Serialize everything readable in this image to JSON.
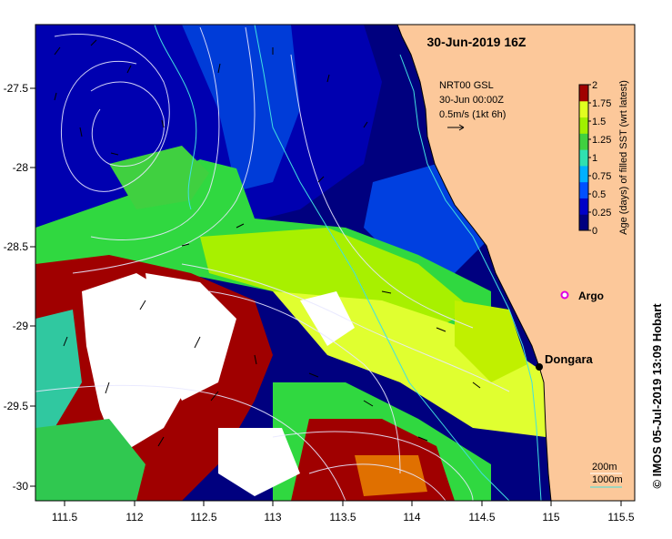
{
  "title": "30-Jun-2019 16Z",
  "product": {
    "line1": "NRT00 GSL",
    "line2": "30-Jun 00:00Z",
    "line3": "0.5m/s (1kt 6h)"
  },
  "colorbar": {
    "label": "Age (days) of filled SST (wrt latest)",
    "ticks": [
      "0",
      "0.25",
      "0.5",
      "0.75",
      "1",
      "1.25",
      "1.5",
      "1.75",
      "2"
    ],
    "colors": [
      "#00007f",
      "#0000c8",
      "#0050ff",
      "#00b0ff",
      "#30e0b0",
      "#40d040",
      "#a0f000",
      "#e0ff20",
      "#a00000"
    ]
  },
  "axes": {
    "x_ticks": [
      "111.5",
      "112",
      "112.5",
      "113",
      "113.5",
      "114",
      "114.5",
      "115",
      "115.5"
    ],
    "y_ticks": [
      "-27.5",
      "-28",
      "-28.5",
      "-29",
      "-29.5",
      "-30"
    ]
  },
  "places": [
    {
      "name": "Argo",
      "lon": 115.07,
      "lat": -28.83,
      "color": "#e000e0"
    },
    {
      "name": "Dongara",
      "lon": 114.93,
      "lat": -29.25,
      "color": "#000000"
    }
  ],
  "legend": {
    "depth1": "200m",
    "depth2": "1000m"
  },
  "credit": "© IMOS 05-Jul-2019 13:09 Hobart",
  "colors": {
    "land": "#fcc89a",
    "ocean_deep": "#00007f"
  }
}
